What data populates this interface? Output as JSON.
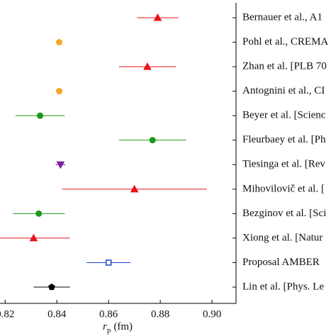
{
  "chart_data": {
    "type": "forest",
    "categories": [
      "Bernauer et al., A1",
      "Pohl et al., CREMA",
      "Zhan et al. [PLB 70",
      "Antognini et al., CI",
      "Beyer et al. [Scienc",
      "Fleurbaey et al. [Ph",
      "Tiesinga et al. [Rev",
      "Mihovilovič et al. [",
      "Bezginov et al. [Sci",
      "Xiong et al. [Natur",
      "Proposal AMBER",
      "Lin et al. [Phys. Le"
    ],
    "values": [
      0.879,
      0.8409,
      0.875,
      0.8409,
      0.8335,
      0.877,
      0.8414,
      0.87,
      0.833,
      0.831,
      0.86,
      0.838
    ],
    "errors": [
      0.008,
      0.0004,
      0.011,
      0.0004,
      0.0095,
      0.013,
      0.0019,
      0.028,
      0.01,
      0.014,
      0.0085,
      0.007
    ],
    "colors": [
      "#e8131b",
      "#f5a623",
      "#e8131b",
      "#f5a623",
      "#1a9a1a",
      "#1a9a1a",
      "#7b1fa2",
      "#e8131b",
      "#1a9a1a",
      "#e8131b",
      "#1f3fd1",
      "#000000"
    ],
    "markers": [
      "triangle-up",
      "pentagon",
      "triangle-up",
      "pentagon",
      "circle",
      "circle",
      "triangle-down",
      "triangle-up",
      "circle",
      "triangle-up",
      "square-open",
      "pentagon"
    ],
    "xlabel_symbol": "r",
    "xlabel_sub": "p",
    "xlabel_unit": "(fm)",
    "xlim": [
      0.818,
      0.9093
    ],
    "xticks": [
      0.82,
      0.84,
      0.86,
      0.88,
      {
        "value": 0.9,
        "label": "0.90"
      }
    ]
  }
}
